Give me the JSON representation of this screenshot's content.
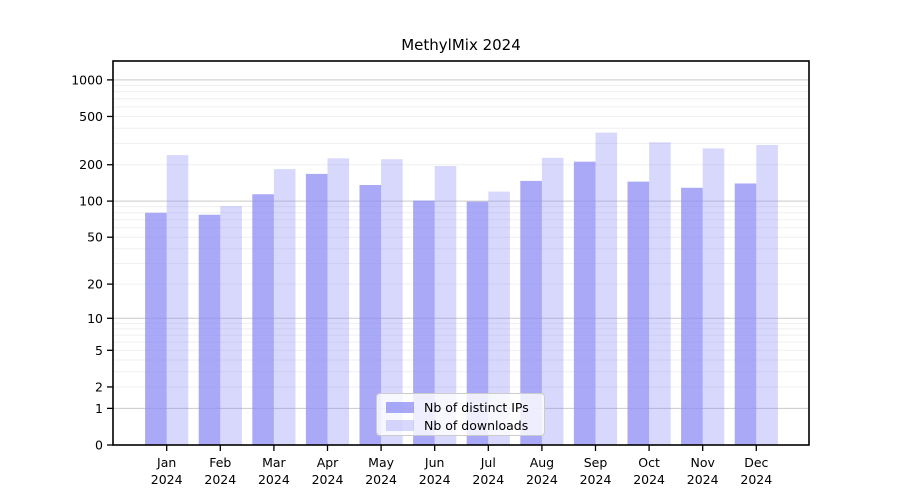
{
  "chart_data": {
    "type": "bar",
    "title": "MethylMix 2024",
    "categories": [
      "Jan 2024",
      "Feb 2024",
      "Mar 2024",
      "Apr 2024",
      "May 2024",
      "Jun 2024",
      "Jul 2024",
      "Aug 2024",
      "Sep 2024",
      "Oct 2024",
      "Nov 2024",
      "Dec 2024"
    ],
    "series": [
      {
        "name": "Nb of distinct IPs",
        "color": "rgba(140,140,245,0.75)",
        "color_hex": "#a8a8f6",
        "values": [
          80,
          77,
          114,
          168,
          136,
          101,
          99,
          147,
          212,
          145,
          129,
          140
        ]
      },
      {
        "name": "Nb of downloads",
        "color": "rgba(140,140,245,0.34)",
        "color_hex": "#d8d8fa",
        "values": [
          240,
          91,
          184,
          226,
          222,
          195,
          120,
          228,
          368,
          306,
          273,
          291
        ]
      }
    ],
    "xlabel": "",
    "ylabel": "",
    "y_axis": {
      "scale": "log10(value+1)",
      "ticks": [
        0,
        1,
        2,
        5,
        10,
        20,
        50,
        100,
        200,
        500,
        1000
      ],
      "minor_ticks": [
        3,
        4,
        6,
        7,
        8,
        9,
        30,
        40,
        60,
        70,
        80,
        90,
        300,
        400,
        600,
        700,
        800,
        900
      ],
      "major_gridlines": [
        1,
        10,
        100,
        1000
      ],
      "max": 1430
    },
    "ylim": [
      0,
      1430
    ],
    "grid": true,
    "legend_position": "lower center",
    "colors": {
      "major_gridline": "#c9c9c9",
      "minor_gridline": "#efefef",
      "axis": "#000000",
      "text": "#000000"
    }
  }
}
